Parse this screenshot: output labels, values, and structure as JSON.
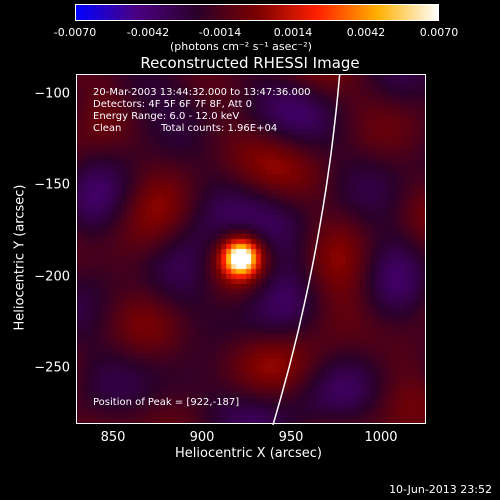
{
  "colorbar": {
    "ticks": [
      "-0.0070",
      "-0.0042",
      "-0.0014",
      "0.0014",
      "0.0042",
      "0.0070"
    ],
    "units": "(photons cm⁻² s⁻¹ asec⁻²)",
    "colors": [
      "#0000ff",
      "#4b0082",
      "#2a002a",
      "#7a0000",
      "#ff2000",
      "#ffb000",
      "#ffffff"
    ]
  },
  "plot": {
    "title": "Reconstructed RHESSI Image",
    "xlabel": "Heliocentric X (arcsec)",
    "ylabel": "Heliocentric Y (arcsec)",
    "xticks": [
      "850",
      "900",
      "950",
      "1000"
    ],
    "yticks": [
      "−100",
      "−150",
      "−200",
      "−250"
    ],
    "xlim": [
      830,
      1025
    ],
    "ylim": [
      -280,
      -85
    ],
    "peak_position": [
      922,
      -187
    ]
  },
  "info": {
    "line1": "20-Mar-2003 13:44:32.000 to 13:47:36.000",
    "line2": "Detectors: 4F 5F 6F 7F 8F, Att 0",
    "line3": "Energy Range: 6.0 - 12.0 keV",
    "line4_a": "Clean",
    "line4_b": "Total counts: 1.96E+04",
    "peak": "Position of Peak = [922,-187]"
  },
  "footer": {
    "date": "10-Jun-2013 23:52"
  }
}
